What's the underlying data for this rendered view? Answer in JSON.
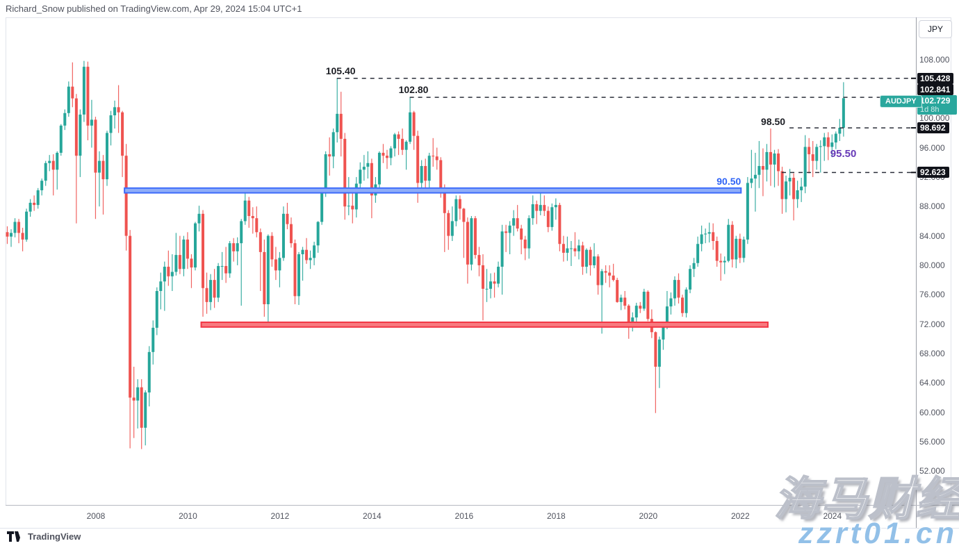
{
  "header": {
    "byline": "Richard_Snow published on TradingView.com, Apr 29, 2024 15:04 UTC+1"
  },
  "colors": {
    "up": "#26a69a",
    "down": "#ef5350",
    "level_line": "#2a2e39",
    "level_label": "#1c1e24",
    "band_blue_stroke": "#3d6bfa",
    "band_blue_fill": "#8fadf8",
    "band_red_stroke": "#f23645",
    "band_red_fill": "#f8797f",
    "blue_label": "#2e63f6",
    "purple_label": "#673ab7",
    "current_badge": "#2aa79d",
    "badge_bg": "#11131a",
    "axis_text": "#50535e"
  },
  "price_axis": {
    "currency": "JPY",
    "ticks": [
      {
        "value": 108,
        "label": "108.000"
      },
      {
        "value": 100,
        "label": "100.000"
      },
      {
        "value": 96,
        "label": "96.000"
      },
      {
        "value": 92,
        "label": "92.000"
      },
      {
        "value": 88,
        "label": "88.000"
      },
      {
        "value": 84,
        "label": "84.000"
      },
      {
        "value": 80,
        "label": "80.000"
      },
      {
        "value": 76,
        "label": "76.000"
      },
      {
        "value": 72,
        "label": "72.000"
      },
      {
        "value": 68,
        "label": "68.000"
      },
      {
        "value": 64,
        "label": "64.000"
      },
      {
        "value": 60,
        "label": "60.000"
      },
      {
        "value": 56,
        "label": "56.000"
      },
      {
        "value": 52,
        "label": "52.000"
      }
    ]
  },
  "time_axis": {
    "years": [
      {
        "label": "2008",
        "month": "2008-01"
      },
      {
        "label": "2010",
        "month": "2010-01"
      },
      {
        "label": "2012",
        "month": "2012-01"
      },
      {
        "label": "2014",
        "month": "2014-01"
      },
      {
        "label": "2016",
        "month": "2016-01"
      },
      {
        "label": "2018",
        "month": "2018-01"
      },
      {
        "label": "2020",
        "month": "2020-01"
      },
      {
        "label": "2022",
        "month": "2022-01"
      },
      {
        "label": "2024",
        "month": "2024-01"
      }
    ]
  },
  "footer": {
    "brand": "TradingView"
  },
  "watermark": {
    "line1": "海马财经",
    "line2": "zzrt01.cn"
  },
  "chart_data": {
    "type": "candlestick",
    "symbol": "AUDJPY",
    "title": "AUDJPY monthly candlestick chart",
    "current_price": 102.729,
    "current_price_label": "102.729",
    "countdown": "1d 8h",
    "start_month": "2006-02",
    "ylim": [
      47.4,
      113.72
    ],
    "grid": false,
    "levels": [
      {
        "price": 105.428,
        "axis_label": "105.428",
        "chart_label": "105.40",
        "start_month": "2013-04",
        "label_side": "over"
      },
      {
        "price": 102.841,
        "axis_label": "102.841",
        "chart_label": "102.80",
        "start_month": "2014-11",
        "label_side": "over"
      },
      {
        "price": 98.692,
        "axis_label": "98.692",
        "chart_label": "98.50",
        "start_month": "2023-02",
        "label_side": "left"
      },
      {
        "price": 92.623,
        "axis_label": "92.623",
        "chart_label": null,
        "start_month": "2022-12",
        "label_side": "none"
      }
    ],
    "bands": [
      {
        "top": 90.5,
        "bottom": 89.85,
        "start_month": "2008-09",
        "end_month": "2022-01",
        "color_key": "blue",
        "label": "90.50"
      },
      {
        "top": 72.25,
        "bottom": 71.6,
        "start_month": "2010-05",
        "end_month": "2022-08",
        "color_key": "red",
        "label": null
      }
    ],
    "annotations": [
      {
        "text": "95.50",
        "month": "2024-01",
        "price": 94.75,
        "color_key": "purple_label"
      }
    ],
    "candles": [
      [
        84.5,
        85.3,
        82.9,
        83.9
      ],
      [
        83.9,
        84.9,
        82.5,
        84.4
      ],
      [
        84.4,
        86.4,
        83.8,
        85.9
      ],
      [
        85.9,
        86.3,
        83,
        84.4
      ],
      [
        84.4,
        85.1,
        81.9,
        83.5
      ],
      [
        83.5,
        87.7,
        83.2,
        87.3
      ],
      [
        87.3,
        89,
        86.6,
        88.5
      ],
      [
        88.5,
        89.5,
        87.4,
        88.2
      ],
      [
        88.2,
        90.5,
        87.7,
        90.2
      ],
      [
        90.2,
        91.8,
        89.5,
        91.5
      ],
      [
        91.5,
        94.2,
        90.8,
        93.9
      ],
      [
        93.9,
        95,
        92.8,
        94.2
      ],
      [
        94.2,
        95.1,
        89.5,
        93
      ],
      [
        93,
        95.5,
        90.3,
        95.3
      ],
      [
        95.3,
        99.2,
        94.9,
        99
      ],
      [
        99,
        101.2,
        98.4,
        100.7
      ],
      [
        100.7,
        105,
        100.2,
        104.3
      ],
      [
        104.3,
        107.6,
        101.5,
        102.7
      ],
      [
        102.7,
        103.3,
        85.7,
        94.9
      ],
      [
        94.9,
        101.2,
        92,
        100.5
      ],
      [
        100.5,
        107.8,
        99.5,
        107
      ],
      [
        107,
        107.7,
        97,
        99
      ],
      [
        99,
        102.5,
        96,
        99.8
      ],
      [
        99.8,
        100.2,
        86.3,
        92.6
      ],
      [
        92.6,
        95.5,
        88,
        94.2
      ],
      [
        94.2,
        95,
        86.9,
        91.7
      ],
      [
        91.7,
        98.3,
        90.8,
        98
      ],
      [
        98,
        101,
        96.3,
        100.4
      ],
      [
        100.4,
        102.4,
        98.6,
        101.5
      ],
      [
        101.5,
        104.5,
        98,
        100.8
      ],
      [
        100.8,
        101,
        92,
        94.9
      ],
      [
        94.9,
        96.5,
        82,
        84
      ],
      [
        84,
        84.8,
        55.1,
        62
      ],
      [
        62,
        66.2,
        56.5,
        61.6
      ],
      [
        61.6,
        64.5,
        57.8,
        63.4
      ],
      [
        63.4,
        64.5,
        55,
        57.9
      ],
      [
        57.9,
        63,
        55.5,
        62.7
      ],
      [
        62.7,
        69,
        60.8,
        68.2
      ],
      [
        68.2,
        72.5,
        66.5,
        71.5
      ],
      [
        71.5,
        77,
        70.5,
        76.5
      ],
      [
        76.5,
        79,
        74,
        77.8
      ],
      [
        77.8,
        80.5,
        73.8,
        79.8
      ],
      [
        79.8,
        82,
        77.2,
        78.5
      ],
      [
        78.5,
        81.5,
        76.5,
        79.1
      ],
      [
        79.1,
        84.4,
        78.6,
        81.4
      ],
      [
        81.4,
        84,
        78.8,
        79.5
      ],
      [
        79.5,
        84,
        78.5,
        83.5
      ],
      [
        83.5,
        84.5,
        79.5,
        80.9
      ],
      [
        80.9,
        81.5,
        76.9,
        79.7
      ],
      [
        79.7,
        85.9,
        79.3,
        85.7
      ],
      [
        85.7,
        88.1,
        84.6,
        87
      ],
      [
        87,
        87.5,
        73,
        76.9
      ],
      [
        76.9,
        79,
        73.4,
        75
      ],
      [
        75,
        78.8,
        73.9,
        78
      ],
      [
        78,
        79.5,
        74.2,
        75.6
      ],
      [
        75.6,
        80.3,
        75,
        79.9
      ],
      [
        79.9,
        81.8,
        78,
        79.9
      ],
      [
        79.9,
        82.5,
        77.6,
        78.9
      ],
      [
        78.9,
        83.3,
        78.3,
        83
      ],
      [
        83,
        83.7,
        80.5,
        81.9
      ],
      [
        81.9,
        83.8,
        80,
        83
      ],
      [
        83,
        86.3,
        74.5,
        86
      ],
      [
        86,
        90,
        85.5,
        88.8
      ],
      [
        88.8,
        89.3,
        85.1,
        86.7
      ],
      [
        86.7,
        87.9,
        84.3,
        86.4
      ],
      [
        86.4,
        88,
        83.8,
        84.5
      ],
      [
        84.5,
        85,
        76.5,
        81.8
      ],
      [
        81.8,
        83.5,
        73,
        74.7
      ],
      [
        74.7,
        84.2,
        72.1,
        84
      ],
      [
        84,
        84.5,
        79.8,
        80.8
      ],
      [
        80.8,
        82.5,
        78,
        79.3
      ],
      [
        79.3,
        81.8,
        77,
        81
      ],
      [
        81,
        88,
        80.6,
        87
      ],
      [
        87,
        88.5,
        84.9,
        85.6
      ],
      [
        85.6,
        86.5,
        82.4,
        83
      ],
      [
        83,
        83.5,
        74.7,
        75.8
      ],
      [
        75.8,
        81.8,
        74.6,
        81.5
      ],
      [
        81.5,
        82.5,
        77.9,
        82.1
      ],
      [
        82.1,
        83.7,
        80.2,
        80.7
      ],
      [
        80.7,
        82,
        79.5,
        81
      ],
      [
        81,
        83.2,
        80,
        82.7
      ],
      [
        82.7,
        86,
        81.7,
        85.9
      ],
      [
        85.9,
        90.3,
        85.5,
        89.9
      ],
      [
        89.9,
        95.5,
        89.3,
        95.1
      ],
      [
        95.1,
        97.4,
        92.2,
        94.8
      ],
      [
        94.8,
        98.6,
        93.2,
        98.1
      ],
      [
        98.1,
        105.4,
        96.7,
        100.6
      ],
      [
        100.6,
        103.6,
        94.8,
        97.2
      ],
      [
        97.2,
        98,
        86.2,
        88
      ],
      [
        88,
        92,
        86.8,
        88.1
      ],
      [
        88.1,
        90,
        85.7,
        87.6
      ],
      [
        87.6,
        92,
        86.5,
        91.1
      ],
      [
        91.1,
        94,
        90.1,
        93
      ],
      [
        93,
        95,
        91.5,
        93.4
      ],
      [
        93.4,
        95.5,
        91.8,
        93.9
      ],
      [
        93.9,
        94.5,
        86.4,
        89.5
      ],
      [
        89.5,
        92,
        88.5,
        91
      ],
      [
        91,
        95.5,
        90.3,
        95.3
      ],
      [
        95.3,
        96.5,
        93.9,
        94.9
      ],
      [
        94.9,
        95.7,
        93.1,
        94.6
      ],
      [
        94.6,
        96.2,
        93.6,
        95.9
      ],
      [
        95.9,
        98,
        94.8,
        97.8
      ],
      [
        97.8,
        98.2,
        95,
        97.2
      ],
      [
        97.2,
        98.6,
        95,
        95.7
      ],
      [
        95.7,
        97,
        93,
        96.8
      ],
      [
        96.8,
        102.8,
        96.5,
        100.8
      ],
      [
        100.8,
        101,
        95.7,
        97.6
      ],
      [
        97.6,
        98.3,
        88.5,
        91.2
      ],
      [
        91.2,
        94.3,
        90,
        93.5
      ],
      [
        93.5,
        94.5,
        90,
        91.5
      ],
      [
        91.5,
        95.3,
        90.3,
        94.9
      ],
      [
        94.9,
        97.3,
        93.4,
        94.8
      ],
      [
        94.8,
        96,
        93,
        94.3
      ],
      [
        94.3,
        94.7,
        89.2,
        90.2
      ],
      [
        90.2,
        91,
        81.8,
        87.1
      ],
      [
        87.1,
        87.5,
        82.1,
        84
      ],
      [
        84,
        88,
        83.3,
        86
      ],
      [
        86,
        89.5,
        85.3,
        89
      ],
      [
        89,
        89.5,
        86.2,
        87.7
      ],
      [
        87.7,
        87.8,
        81,
        85.9
      ],
      [
        85.9,
        86.5,
        77.5,
        80.1
      ],
      [
        80.1,
        86.7,
        79.3,
        86.4
      ],
      [
        86.4,
        86.7,
        80.9,
        81.4
      ],
      [
        81.4,
        82.5,
        78.5,
        80
      ],
      [
        80,
        81.5,
        72.5,
        76.8
      ],
      [
        76.8,
        79.5,
        75,
        76.8
      ],
      [
        76.8,
        78.9,
        75.5,
        77.8
      ],
      [
        77.8,
        79,
        75.6,
        77.5
      ],
      [
        77.5,
        80.5,
        77,
        79.8
      ],
      [
        79.8,
        85.5,
        76,
        84.6
      ],
      [
        84.6,
        85.5,
        81.8,
        84.4
      ],
      [
        84.4,
        86,
        81.5,
        85.4
      ],
      [
        85.4,
        87.5,
        84,
        86.4
      ],
      [
        86.4,
        88.2,
        84.6,
        85
      ],
      [
        85,
        85.5,
        81.5,
        83.5
      ],
      [
        83.5,
        84,
        80.7,
        82.3
      ],
      [
        82.3,
        86.8,
        80.9,
        86.4
      ],
      [
        86.4,
        89.5,
        85.5,
        88.3
      ],
      [
        88.3,
        88.8,
        85.6,
        87.4
      ],
      [
        87.4,
        90.3,
        86.8,
        88.2
      ],
      [
        88.2,
        89.5,
        86.7,
        87.4
      ],
      [
        87.4,
        88,
        84.5,
        85.2
      ],
      [
        85.2,
        88.4,
        84.7,
        87.9
      ],
      [
        87.9,
        89.1,
        86.2,
        88.2
      ],
      [
        88.2,
        88.5,
        81.9,
        82.9
      ],
      [
        82.9,
        84,
        80.5,
        81.7
      ],
      [
        81.7,
        83.9,
        80.6,
        82.3
      ],
      [
        82.3,
        83.3,
        79.9,
        82.3
      ],
      [
        82.3,
        84.5,
        81.2,
        81.9
      ],
      [
        81.9,
        83.5,
        80.8,
        82.7
      ],
      [
        82.7,
        83.2,
        78.7,
        79.8
      ],
      [
        79.8,
        82.3,
        78.9,
        82.1
      ],
      [
        82.1,
        82.5,
        78.6,
        80
      ],
      [
        80,
        83,
        79.6,
        81.2
      ],
      [
        81.2,
        81.5,
        76,
        77.3
      ],
      [
        77.3,
        79.5,
        70.7,
        79.2
      ],
      [
        79.2,
        80,
        77.6,
        79
      ],
      [
        79,
        80,
        77,
        78.6
      ],
      [
        78.6,
        80.2,
        77.8,
        78
      ],
      [
        78,
        78.3,
        74.9,
        75
      ],
      [
        75,
        76,
        73.9,
        75.6
      ],
      [
        75.6,
        76.5,
        74,
        74.5
      ],
      [
        74.5,
        74.7,
        70,
        71.6
      ],
      [
        71.6,
        73.6,
        71,
        72.9
      ],
      [
        72.9,
        74.9,
        71.7,
        74.5
      ],
      [
        74.5,
        75,
        73.5,
        74.1
      ],
      [
        74.1,
        76.8,
        73.8,
        76.4
      ],
      [
        76.4,
        76.6,
        72.4,
        72.7
      ],
      [
        72.7,
        74,
        70.1,
        70.9
      ],
      [
        70.9,
        71,
        59.9,
        66.2
      ],
      [
        66.2,
        70.3,
        63.3,
        69.9
      ],
      [
        69.9,
        72,
        68.5,
        71.9
      ],
      [
        71.9,
        76.5,
        71.3,
        74.4
      ],
      [
        74.4,
        76.3,
        73.3,
        75.5
      ],
      [
        75.5,
        78.5,
        74.5,
        78
      ],
      [
        78,
        78.9,
        74.8,
        75.6
      ],
      [
        75.6,
        76,
        73,
        73.5
      ],
      [
        73.5,
        77,
        72.9,
        76.7
      ],
      [
        76.7,
        80,
        76.2,
        79.5
      ],
      [
        79.5,
        81,
        78.4,
        80.3
      ],
      [
        80.3,
        83.9,
        79.8,
        82.9
      ],
      [
        82.9,
        85.4,
        81.9,
        84.2
      ],
      [
        84.2,
        85,
        83,
        84.3
      ],
      [
        84.3,
        85.8,
        83.1,
        84.5
      ],
      [
        84.5,
        85.7,
        82.1,
        83.3
      ],
      [
        83.3,
        83.9,
        79.8,
        80.6
      ],
      [
        80.6,
        81.6,
        77.9,
        80.4
      ],
      [
        80.4,
        81.2,
        78.8,
        80.6
      ],
      [
        80.6,
        86.3,
        80.4,
        85.5
      ],
      [
        85.5,
        86,
        79.7,
        80.8
      ],
      [
        80.8,
        84,
        79.6,
        83.6
      ],
      [
        83.6,
        84.3,
        80.3,
        81
      ],
      [
        81,
        83.9,
        80.4,
        83.5
      ],
      [
        83.5,
        92,
        82.9,
        91.2
      ],
      [
        91.2,
        95.7,
        90.5,
        91.8
      ],
      [
        91.8,
        95.3,
        87.3,
        92.3
      ],
      [
        92.3,
        96.9,
        90.5,
        93.5
      ],
      [
        93.5,
        95.9,
        89.4,
        93
      ],
      [
        93,
        96.5,
        91.4,
        95.4
      ],
      [
        95.4,
        98.6,
        90.8,
        93.7
      ],
      [
        93.7,
        95.7,
        90.6,
        95.2
      ],
      [
        95.2,
        95.8,
        90.8,
        92.8
      ],
      [
        92.8,
        93.4,
        87,
        89
      ],
      [
        89,
        92.2,
        87.2,
        91.4
      ],
      [
        91.4,
        93.1,
        89.5,
        91.9
      ],
      [
        91.9,
        92.5,
        86.1,
        89
      ],
      [
        89,
        91.5,
        87.8,
        90.2
      ],
      [
        90.2,
        91.9,
        88.6,
        90.7
      ],
      [
        90.7,
        97.7,
        89.8,
        96.1
      ],
      [
        96.1,
        97.3,
        92.5,
        95.1
      ],
      [
        95.1,
        96.9,
        92,
        94.2
      ],
      [
        94.2,
        96.5,
        93,
        96.1
      ],
      [
        96.1,
        97,
        92.6,
        96.2
      ],
      [
        96.2,
        98,
        94.2,
        97.4
      ],
      [
        97.4,
        98.1,
        94.3,
        96.1
      ],
      [
        96.1,
        97.8,
        94.7,
        96.7
      ],
      [
        96.7,
        98.2,
        95.8,
        97.9
      ],
      [
        97.9,
        99.9,
        96.9,
        98.7
      ],
      [
        98.7,
        104.9,
        97.5,
        102.73
      ]
    ]
  }
}
